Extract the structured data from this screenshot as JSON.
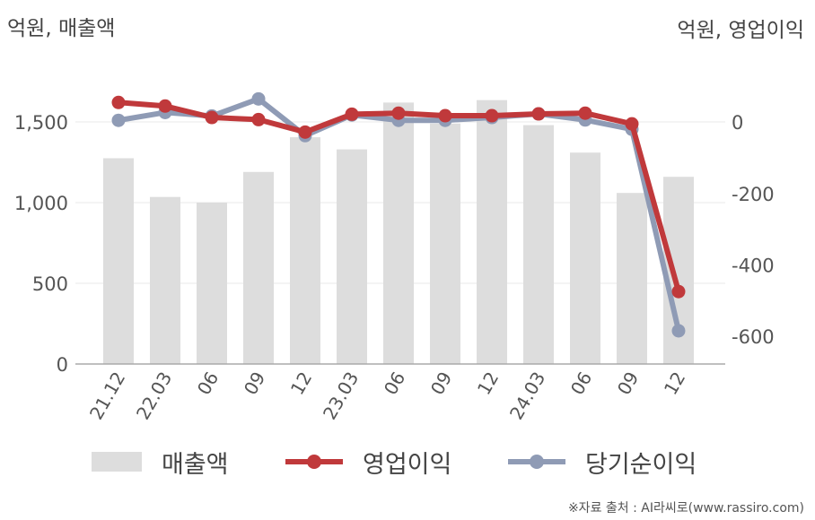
{
  "header": {
    "left_unit": "억원, 매출액",
    "right_unit": "억원, 영업이익"
  },
  "credit": "※자료 출처 : AI라씨로(www.rassiro.com)",
  "legend": {
    "bar_label": "매출액",
    "line1_label": "영업이익",
    "line2_label": "당기순이익"
  },
  "colors": {
    "bar": "#dddddd",
    "line1": "#c0393b",
    "line2": "#8f9bb5",
    "grid": "#e8e8e8",
    "axis": "#aaaaaa"
  },
  "chart_data": {
    "type": "bar",
    "categories": [
      "21.12",
      "22.03",
      "06",
      "09",
      "12",
      "23.03",
      "06",
      "09",
      "12",
      "24.03",
      "06",
      "09",
      "12"
    ],
    "series": [
      {
        "name": "매출액",
        "type": "bar",
        "axis": "left",
        "values": [
          1275,
          1035,
          1000,
          1190,
          1405,
          1330,
          1620,
          1490,
          1635,
          1480,
          1310,
          1060,
          1160
        ]
      },
      {
        "name": "영업이익",
        "type": "line",
        "axis": "right",
        "values": [
          55,
          45,
          13,
          7,
          -28,
          22,
          25,
          18,
          18,
          23,
          25,
          -5,
          -475
        ]
      },
      {
        "name": "당기순이익",
        "type": "line",
        "axis": "right",
        "values": [
          5,
          27,
          17,
          65,
          -38,
          20,
          5,
          5,
          13,
          23,
          6,
          -20,
          -585
        ]
      }
    ],
    "y_left": {
      "ticks": [
        0,
        500,
        1000,
        1500
      ],
      "tick_labels": [
        "0",
        "500",
        "1,000",
        "1,500"
      ],
      "range": [
        0,
        1950
      ]
    },
    "y_right": {
      "ticks": [
        0,
        -200,
        -400,
        -600
      ],
      "tick_labels": [
        "0",
        "-200",
        "-400",
        "-600"
      ],
      "range": [
        -678,
        204
      ]
    },
    "grid": true,
    "legend_position": "bottom"
  }
}
